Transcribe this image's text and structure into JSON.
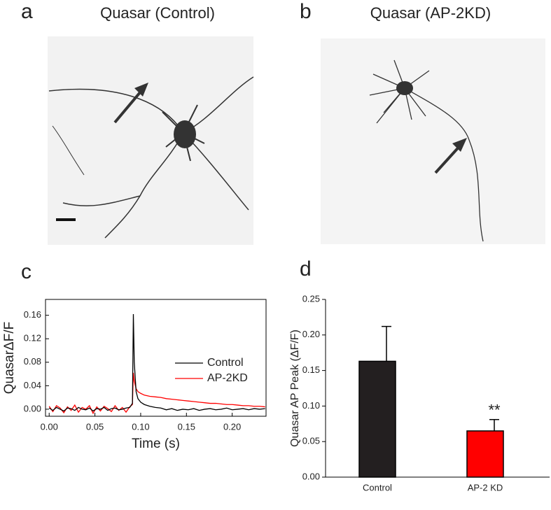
{
  "panels": [
    {
      "label": "a",
      "title": "Quasar (Control)"
    },
    {
      "label": "b",
      "title": "Quasar (AP-2KD)"
    },
    {
      "label": "c"
    },
    {
      "label": "d"
    }
  ],
  "chart_data": [
    {
      "type": "line",
      "x_label": "Time (s)",
      "y_label": "QuasarΔF/F",
      "x": [
        0,
        0.004,
        0.008,
        0.012,
        0.016,
        0.02,
        0.024,
        0.028,
        0.032,
        0.036,
        0.04,
        0.044,
        0.048,
        0.052,
        0.056,
        0.06,
        0.064,
        0.068,
        0.072,
        0.076,
        0.08,
        0.084,
        0.088,
        0.091,
        0.092,
        0.093,
        0.095,
        0.097,
        0.1,
        0.104,
        0.11,
        0.116,
        0.122,
        0.128,
        0.134,
        0.14,
        0.146,
        0.152,
        0.158,
        0.164,
        0.17,
        0.176,
        0.182,
        0.188,
        0.194,
        0.2,
        0.206,
        0.212,
        0.218,
        0.224,
        0.23,
        0.236
      ],
      "series": [
        {
          "name": "Control",
          "color": "#000000",
          "values": [
            0.002,
            -0.002,
            0.003,
            0,
            -0.003,
            0.002,
            0.001,
            -0.002,
            0.003,
            0,
            -0.001,
            0.002,
            -0.003,
            0.001,
            0,
            0.003,
            -0.002,
            0.001,
            0.002,
            -0.001,
            0,
            0.002,
            0.003,
            0.01,
            0.162,
            0.08,
            0.03,
            0.018,
            0.012,
            0.008,
            0.005,
            0.003,
            0.002,
            -0.001,
            0.001,
            -0.002,
            0,
            -0.001,
            0.001,
            -0.002,
            0,
            0.001,
            -0.001,
            0,
            0.002,
            -0.001,
            0,
            0.001,
            -0.001,
            0.001,
            0,
            0.001
          ]
        },
        {
          "name": "AP-2KD",
          "color": "#ff0000",
          "values": [
            0.005,
            -0.004,
            0.006,
            0.002,
            -0.006,
            0.004,
            -0.002,
            0.007,
            -0.005,
            0.003,
            0,
            0.006,
            -0.007,
            0.004,
            -0.003,
            0.005,
            0.001,
            -0.004,
            0.006,
            -0.002,
            0.003,
            -0.005,
            0.004,
            0.008,
            0.062,
            0.048,
            0.035,
            0.03,
            0.027,
            0.024,
            0.022,
            0.021,
            0.02,
            0.018,
            0.017,
            0.016,
            0.015,
            0.014,
            0.013,
            0.012,
            0.011,
            0.01,
            0.01,
            0.009,
            0.008,
            0.008,
            0.007,
            0.006,
            0.006,
            0.005,
            0.005,
            0.004
          ]
        }
      ],
      "xlim": [
        -0.004,
        0.237
      ],
      "xticks": [
        {
          "value": 0,
          "label": "0.00"
        },
        {
          "value": 0.05,
          "label": "0.05"
        },
        {
          "value": 0.1,
          "label": "0.10"
        },
        {
          "value": 0.15,
          "label": "0.15"
        },
        {
          "value": 0.2,
          "label": "0.20"
        }
      ],
      "ylim": [
        -0.012,
        0.187
      ],
      "yticks": [
        {
          "value": 0,
          "label": "0.00"
        },
        {
          "value": 0.04,
          "label": "0.04"
        },
        {
          "value": 0.08,
          "label": "0.08"
        },
        {
          "value": 0.12,
          "label": "0.12"
        },
        {
          "value": 0.16,
          "label": "0.16"
        }
      ],
      "legend": "right"
    },
    {
      "type": "bar",
      "y_label": "Quasar AP Peak (ΔF/F)",
      "categories": [
        "Control",
        "AP-2 KD"
      ],
      "values": [
        0.163,
        0.065
      ],
      "errors": [
        0.049,
        0.016
      ],
      "colors": [
        "#231f20",
        "#ff0000"
      ],
      "annotation": "**",
      "ylim": [
        0,
        0.25
      ],
      "yticks": [
        {
          "value": 0,
          "label": "0.00"
        },
        {
          "value": 0.05,
          "label": "0.05"
        },
        {
          "value": 0.1,
          "label": "0.10"
        },
        {
          "value": 0.15,
          "label": "0.15"
        },
        {
          "value": 0.2,
          "label": "0.20"
        },
        {
          "value": 0.25,
          "label": "0.25"
        }
      ]
    }
  ]
}
